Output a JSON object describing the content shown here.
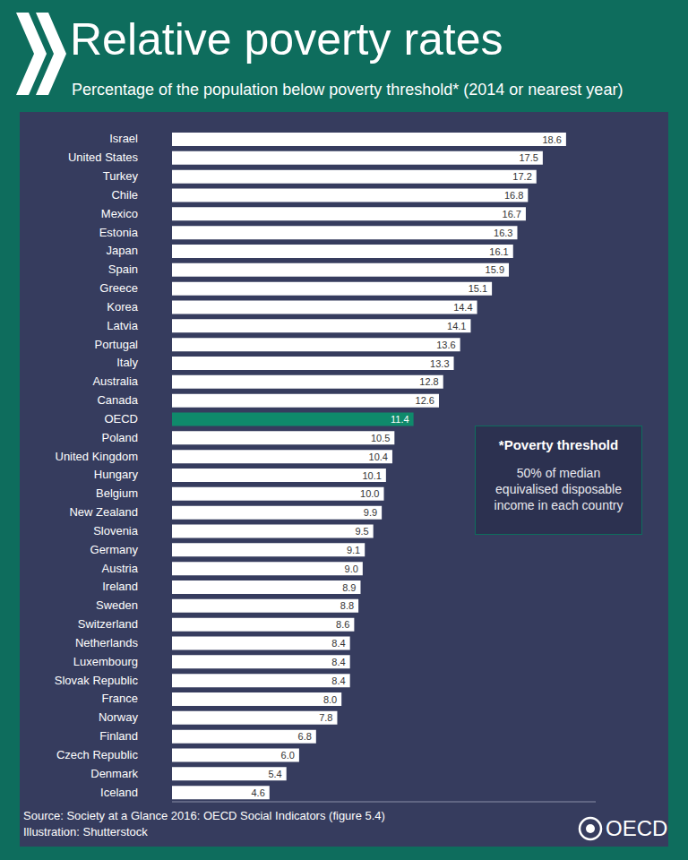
{
  "chart_data": {
    "type": "bar",
    "orientation": "horizontal",
    "title": "Relative poverty rates",
    "subtitle": "Percentage of the population below poverty threshold* (2014 or nearest year)",
    "categories": [
      "Israel",
      "United States",
      "Turkey",
      "Chile",
      "Mexico",
      "Estonia",
      "Japan",
      "Spain",
      "Greece",
      "Korea",
      "Latvia",
      "Portugal",
      "Italy",
      "Australia",
      "Canada",
      "OECD",
      "Poland",
      "United Kingdom",
      "Hungary",
      "Belgium",
      "New Zealand",
      "Slovenia",
      "Germany",
      "Austria",
      "Ireland",
      "Sweden",
      "Switzerland",
      "Netherlands",
      "Luxembourg",
      "Slovak Republic",
      "France",
      "Norway",
      "Finland",
      "Czech Republic",
      "Denmark",
      "Iceland"
    ],
    "values": [
      18.6,
      17.5,
      17.2,
      16.8,
      16.7,
      16.3,
      16.1,
      15.9,
      15.1,
      14.4,
      14.1,
      13.6,
      13.3,
      12.8,
      12.6,
      11.4,
      10.5,
      10.4,
      10.1,
      10.0,
      9.9,
      9.5,
      9.1,
      9.0,
      8.9,
      8.8,
      8.6,
      8.4,
      8.4,
      8.4,
      8.0,
      7.8,
      6.8,
      6.0,
      5.4,
      4.6
    ],
    "value_labels": [
      "18.6",
      "17.5",
      "17.2",
      "16.8",
      "16.7",
      "16.3",
      "16.1",
      "15.9",
      "15.1",
      "14.4",
      "14.1",
      "13.6",
      "13.3",
      "12.8",
      "12.6",
      "11.4",
      "10.5",
      "10.4",
      "10.1",
      "10.0",
      "9.9",
      "9.5",
      "9.1",
      "9.0",
      "8.9",
      "8.8",
      "8.6",
      "8.4",
      "8.4",
      "8.4",
      "8.0",
      "7.8",
      "6.8",
      "6.0",
      "5.4",
      "4.6"
    ],
    "colors": [
      "#ffffff",
      "#ffffff",
      "#ffffff",
      "#ffffff",
      "#ffffff",
      "#ffffff",
      "#ffffff",
      "#ffffff",
      "#ffffff",
      "#ffffff",
      "#ffffff",
      "#ffffff",
      "#ffffff",
      "#ffffff",
      "#ffffff",
      "#0f8a6b",
      "#ffffff",
      "#ffffff",
      "#ffffff",
      "#ffffff",
      "#ffffff",
      "#ffffff",
      "#ffffff",
      "#ffffff",
      "#ffffff",
      "#ffffff",
      "#ffffff",
      "#ffffff",
      "#ffffff",
      "#ffffff",
      "#ffffff",
      "#ffffff",
      "#ffffff",
      "#ffffff",
      "#ffffff",
      "#ffffff"
    ],
    "xlim": [
      0,
      20
    ],
    "data_labels": true,
    "tick_labels": "y",
    "grid": false,
    "annotations": [
      {
        "title": "*Poverty threshold",
        "text": "50% of median equivalised disposable income in each country"
      }
    ],
    "source": [
      "Source: Society at a Glance 2016: OECD Social Indicators (figure 5.4)",
      "Illustration: Shutterstock"
    ],
    "logo": "OECD"
  }
}
